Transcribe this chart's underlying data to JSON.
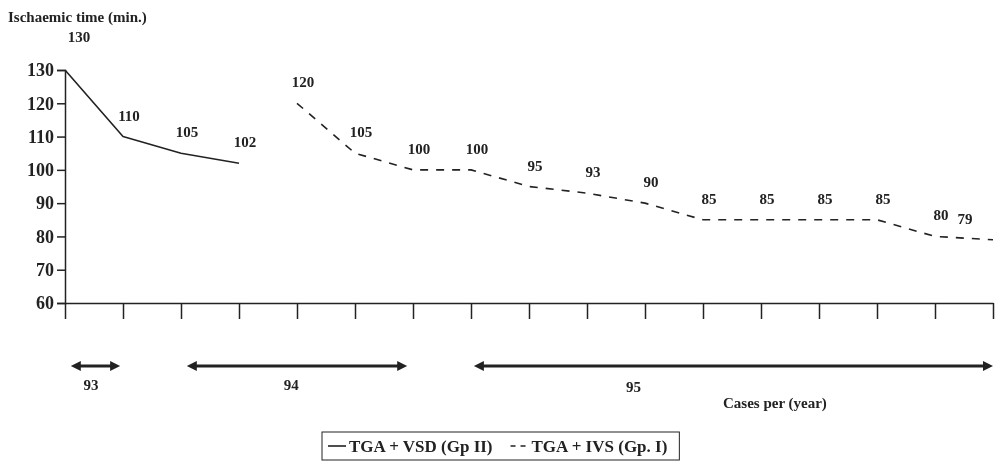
{
  "chart_data": {
    "type": "line",
    "ylabel": "Ischaemic time (min.)",
    "categories": [
      null,
      null,
      null,
      null,
      null,
      null,
      null,
      null,
      null,
      null,
      null,
      null,
      null,
      null,
      null,
      null,
      null
    ],
    "series": [
      {
        "name": "TGA + VSD (Gp II)",
        "color": "#222222",
        "line_style": "solid",
        "values": [
          130,
          110,
          105,
          102,
          null,
          null,
          null,
          null,
          null,
          null,
          null,
          null,
          null,
          null,
          null,
          null,
          null
        ]
      },
      {
        "name": "TGA + IVS (Gp. I)",
        "color": "#222222",
        "line_style": "dashed",
        "values": [
          null,
          null,
          null,
          null,
          120,
          105,
          100,
          100,
          95,
          93,
          90,
          85,
          85,
          85,
          85,
          80,
          79
        ]
      }
    ],
    "ylim": [
      60,
      130
    ],
    "yticks": [
      60,
      70,
      80,
      90,
      100,
      110,
      120,
      130
    ],
    "grid": false,
    "legend": "bottom",
    "marker": "none",
    "data_labels": true,
    "tick_labels": "y",
    "annotations": [
      "93",
      "94",
      "95",
      "Cases per (year)"
    ]
  }
}
